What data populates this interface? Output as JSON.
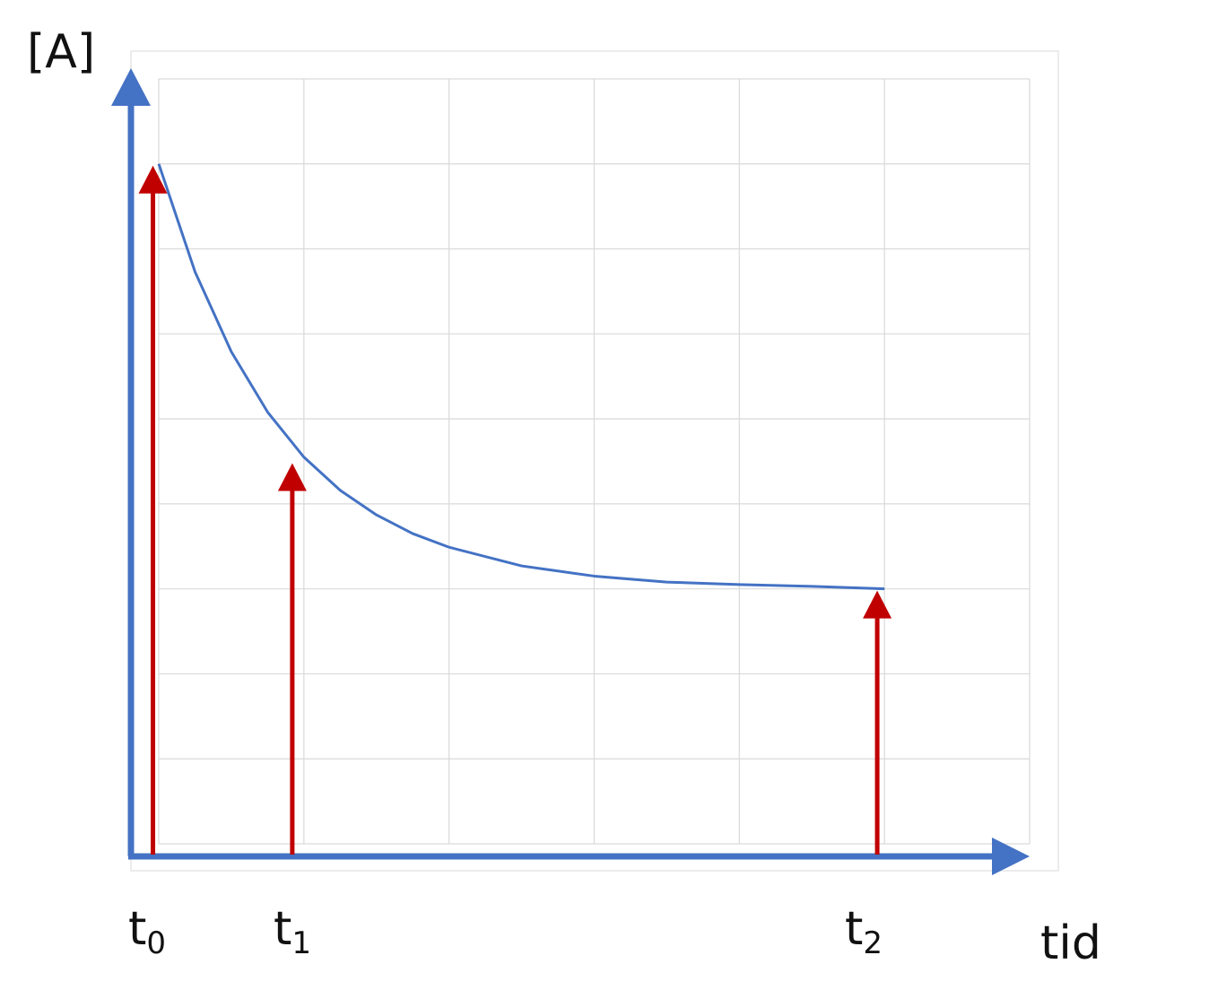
{
  "chart_data": {
    "type": "line",
    "title": "",
    "ylabel": "[A]",
    "xlabel": "tid",
    "xlim": [
      0,
      6
    ],
    "ylim": [
      0,
      9
    ],
    "grid": true,
    "series": [
      {
        "x": [
          0,
          0.25,
          0.5,
          0.75,
          1,
          1.25,
          1.5,
          1.75,
          2,
          2.5,
          3,
          3.5,
          4,
          4.5,
          5
        ],
        "y": [
          8,
          6.73,
          5.79,
          5.08,
          4.55,
          4.16,
          3.87,
          3.65,
          3.49,
          3.27,
          3.15,
          3.08,
          3.05,
          3.03,
          3.0
        ]
      }
    ],
    "markers": [
      {
        "label": "t",
        "sub": "0",
        "x": -0.04,
        "y": 8
      },
      {
        "label": "t",
        "sub": "1",
        "x": 0.92,
        "y": 4.5
      },
      {
        "label": "t",
        "sub": "2",
        "x": 4.95,
        "y": 3
      }
    ],
    "colors": {
      "axis": "#4472c4",
      "curve": "#4472c4",
      "marker": "#c00000",
      "grid": "#d9d9d9"
    }
  }
}
